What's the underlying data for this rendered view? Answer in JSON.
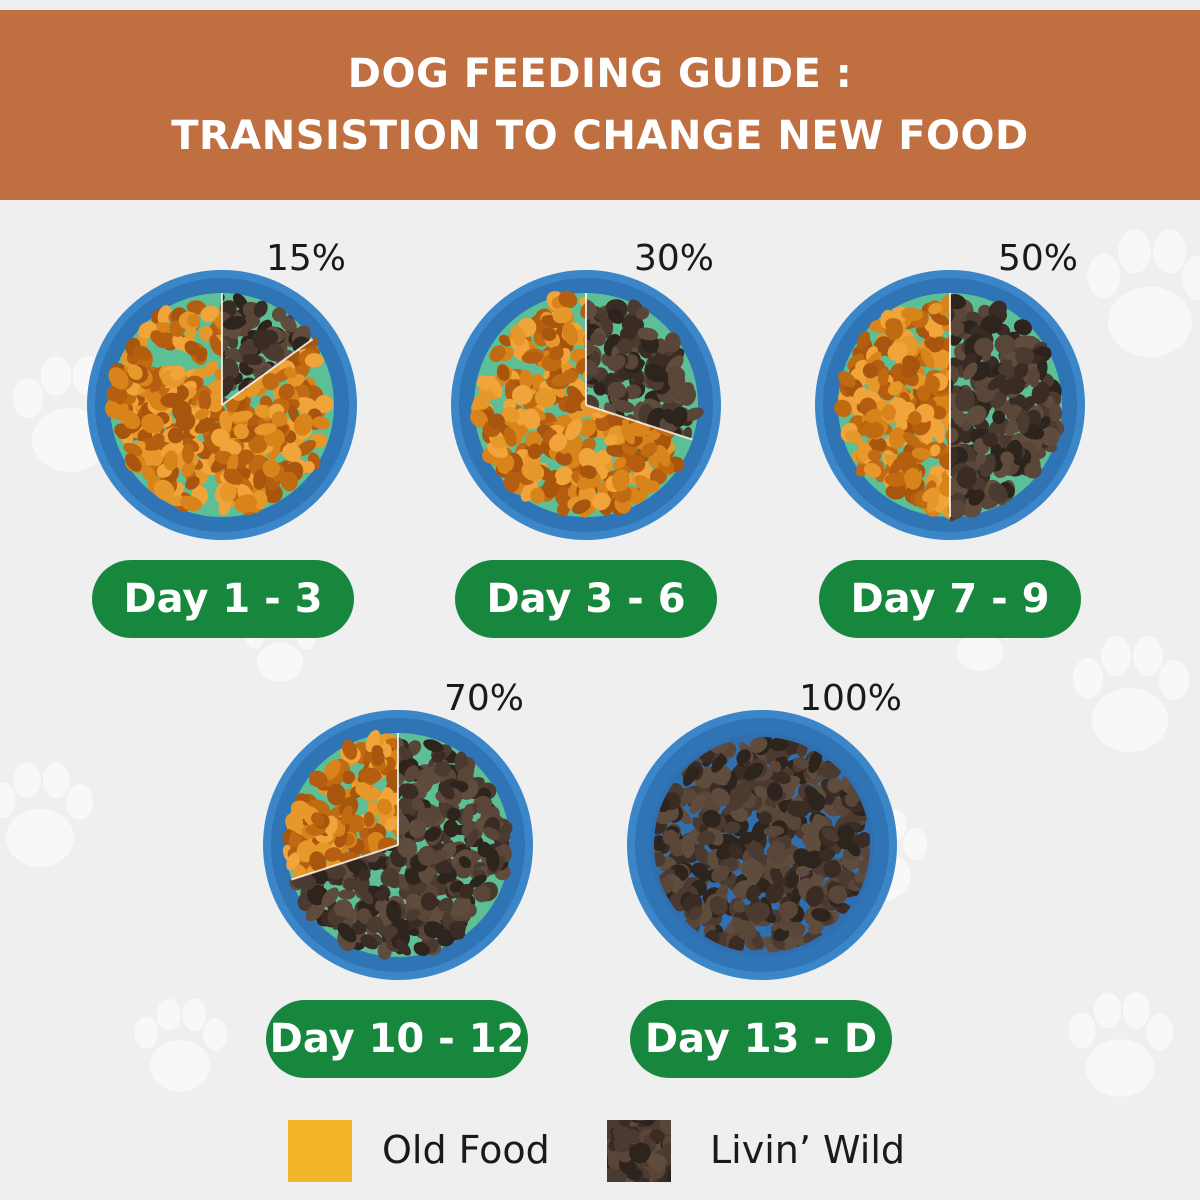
{
  "header": {
    "line1": "DOG FEEDING GUIDE :",
    "line2": "TRANSISTION TO CHANGE NEW FOOD"
  },
  "colors": {
    "header_bg": "#c07040",
    "old_food": "#f3b52a",
    "new_food": "#4a3a30",
    "pill": "#17873d",
    "bowl_rim": "#3a86c8",
    "bowl_inner": "#5cbf95"
  },
  "stages": [
    {
      "day_label": "Day 1 - 3",
      "percent_label": "15%",
      "new_fraction": 0.15
    },
    {
      "day_label": "Day 3 - 6",
      "percent_label": "30%",
      "new_fraction": 0.3
    },
    {
      "day_label": "Day 7 - 9",
      "percent_label": "50%",
      "new_fraction": 0.5
    },
    {
      "day_label": "Day 10 - 12",
      "percent_label": "70%",
      "new_fraction": 0.7
    },
    {
      "day_label": "Day 13 - D",
      "percent_label": "100%",
      "new_fraction": 1.0
    }
  ],
  "legend": [
    {
      "label": "Old Food",
      "icon": "old-food-swatch"
    },
    {
      "label": "Livin’ Wild",
      "icon": "livin-wild-swatch"
    }
  ]
}
